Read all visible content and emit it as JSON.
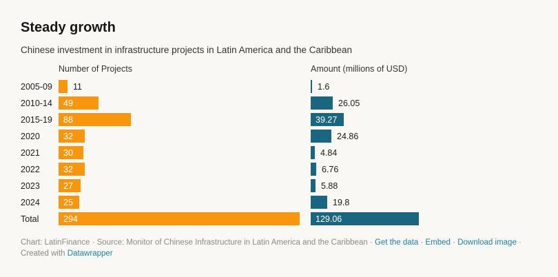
{
  "header": {
    "title": "Steady growth",
    "subtitle": "Chinese investment in infrastructure projects in Latin America and the Caribbean"
  },
  "columns": {
    "left_header": "Number of Projects",
    "right_header": "Amount (millions of USD)"
  },
  "chart_data": {
    "type": "bar",
    "orientation": "horizontal",
    "title": "Steady growth",
    "subtitle": "Chinese investment in infrastructure projects in Latin America and the Caribbean",
    "categories": [
      "2005-09",
      "2010-14",
      "2015-19",
      "2020",
      "2021",
      "2022",
      "2023",
      "2024",
      "Total"
    ],
    "series": [
      {
        "name": "Number of Projects",
        "color": "#F8960D",
        "values": [
          11,
          49,
          88,
          32,
          30,
          32,
          27,
          25,
          294
        ],
        "labels": [
          "11",
          "49",
          "88",
          "32",
          "30",
          "32",
          "27",
          "25",
          "294"
        ],
        "xlim": [
          0,
          294
        ]
      },
      {
        "name": "Amount (millions of USD)",
        "color": "#1A6680",
        "values": [
          1.6,
          26.05,
          39.27,
          24.86,
          4.84,
          6.76,
          5.88,
          19.8,
          129.06
        ],
        "labels": [
          "1.6",
          "26.05",
          "39.27",
          "24.86",
          "4.84",
          "6.76",
          "5.88",
          "19.8",
          "129.06"
        ],
        "xlim": [
          0,
          129.06
        ]
      }
    ],
    "legend": "none",
    "grid": false,
    "value_labels": "on-bar"
  },
  "footer": {
    "segments": [
      {
        "text": "Chart: LatinFinance",
        "link": false,
        "name": "footer-chart-credit"
      },
      {
        "text": " · ",
        "link": false,
        "name": "footer-separator"
      },
      {
        "text": "Source: Monitor of Chinese Infrastructure in Latin America and the Caribbean",
        "link": false,
        "name": "footer-source"
      },
      {
        "text": " · ",
        "link": false,
        "name": "footer-separator"
      },
      {
        "text": "Get the data",
        "link": true,
        "name": "get-the-data-link"
      },
      {
        "text": " · ",
        "link": false,
        "name": "footer-separator"
      },
      {
        "text": "Embed",
        "link": true,
        "name": "embed-link"
      },
      {
        "text": " · ",
        "link": false,
        "name": "footer-separator"
      },
      {
        "text": "Download image",
        "link": true,
        "name": "download-image-link"
      },
      {
        "text": " · ",
        "link": false,
        "name": "footer-separator"
      },
      {
        "text": "Created with ",
        "link": false,
        "name": "footer-created-with"
      },
      {
        "text": "Datawrapper",
        "link": true,
        "name": "datawrapper-link"
      }
    ]
  },
  "colors": {
    "background": "#FAF8F4",
    "bar_orange": "#F8960D",
    "bar_teal": "#1A6680",
    "link_blue": "#1D81A2",
    "text_dark": "#1A1A1A",
    "text_muted": "#8A8A8A"
  }
}
